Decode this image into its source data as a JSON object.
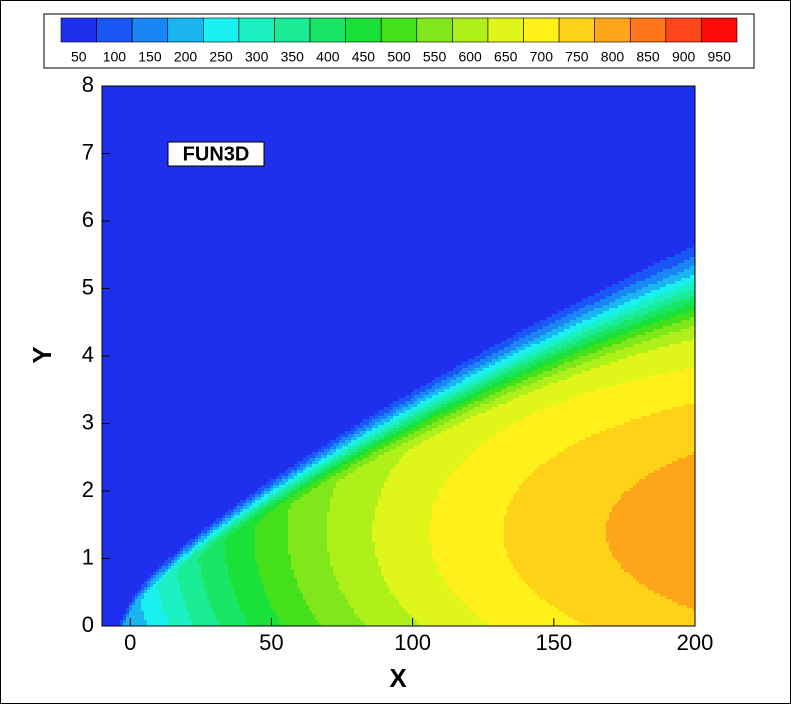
{
  "chart_data": {
    "type": "contour",
    "annotation": "FUN3D",
    "x_label": "X",
    "y_label": "Y",
    "xlim": [
      -10,
      200
    ],
    "xticks": [
      0,
      50,
      100,
      150,
      200
    ],
    "ylim": [
      0,
      8
    ],
    "yticks": [
      0,
      1,
      2,
      3,
      4,
      5,
      6,
      7,
      8
    ],
    "levels": [
      50,
      100,
      150,
      200,
      250,
      300,
      350,
      400,
      450,
      500,
      550,
      600,
      650,
      700,
      750,
      800,
      850,
      900,
      950
    ],
    "colors": [
      "#1e30ee",
      "#1a55f5",
      "#1a85f5",
      "#1ab5f0",
      "#1af0f0",
      "#1af0c0",
      "#1aeb95",
      "#1ae665",
      "#1ae03a",
      "#44e01a",
      "#80e81a",
      "#b0f01a",
      "#e0f51a",
      "#fff01a",
      "#ffd21a",
      "#ffa51a",
      "#ff751a",
      "#ff451a",
      "#ff0a0a"
    ]
  }
}
